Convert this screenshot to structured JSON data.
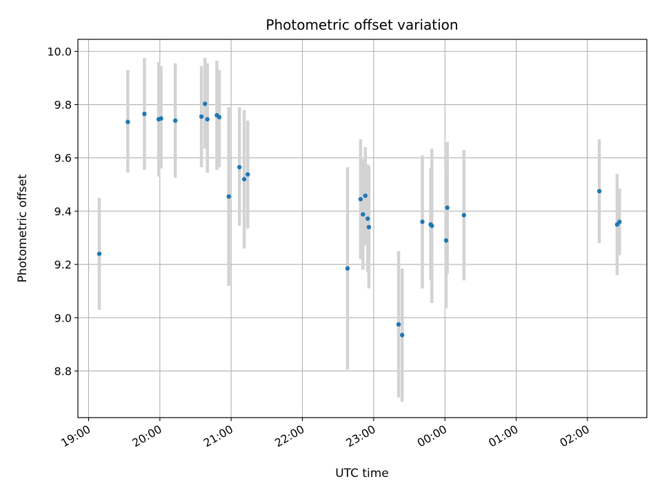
{
  "chart_data": {
    "type": "scatter",
    "title": "Photometric offset variation",
    "xlabel": "UTC time",
    "ylabel": "Photometric offset",
    "x_is_time": true,
    "xlim": [
      "18:51",
      "02:50"
    ],
    "ylim": [
      8.625,
      10.045
    ],
    "grid": true,
    "marker_color": "#1f77b4",
    "errorbar_color": "#d3d3d3",
    "x_ticks": [
      "19:00",
      "20:00",
      "21:00",
      "22:00",
      "23:00",
      "00:00",
      "01:00",
      "02:00"
    ],
    "y_ticks": [
      "8.8",
      "9.0",
      "9.2",
      "9.4",
      "9.6",
      "9.8",
      "10.0"
    ],
    "y_tick_values": [
      8.8,
      9.0,
      9.2,
      9.4,
      9.6,
      9.8,
      10.0
    ],
    "points": [
      {
        "t": "19:09",
        "y": 9.24,
        "ylow": 9.03,
        "yhigh": 9.45
      },
      {
        "t": "19:33",
        "y": 9.735,
        "ylow": 9.545,
        "yhigh": 9.93
      },
      {
        "t": "19:47",
        "y": 9.765,
        "ylow": 9.555,
        "yhigh": 9.975
      },
      {
        "t": "19:59",
        "y": 9.745,
        "ylow": 9.53,
        "yhigh": 9.96
      },
      {
        "t": "20:01",
        "y": 9.748,
        "ylow": 9.56,
        "yhigh": 9.945
      },
      {
        "t": "20:13",
        "y": 9.74,
        "ylow": 9.525,
        "yhigh": 9.955
      },
      {
        "t": "20:35",
        "y": 9.755,
        "ylow": 9.565,
        "yhigh": 9.945
      },
      {
        "t": "20:38",
        "y": 9.803,
        "ylow": 9.635,
        "yhigh": 9.975
      },
      {
        "t": "20:40",
        "y": 9.745,
        "ylow": 9.545,
        "yhigh": 9.955
      },
      {
        "t": "20:48",
        "y": 9.76,
        "ylow": 9.555,
        "yhigh": 9.965
      },
      {
        "t": "20:50",
        "y": 9.753,
        "ylow": 9.565,
        "yhigh": 9.93
      },
      {
        "t": "20:58",
        "y": 9.455,
        "ylow": 9.12,
        "yhigh": 9.79
      },
      {
        "t": "21:07",
        "y": 9.565,
        "ylow": 9.345,
        "yhigh": 9.79
      },
      {
        "t": "21:11",
        "y": 9.52,
        "ylow": 9.26,
        "yhigh": 9.78
      },
      {
        "t": "21:14",
        "y": 9.538,
        "ylow": 9.335,
        "yhigh": 9.74
      },
      {
        "t": "22:38",
        "y": 9.185,
        "ylow": 8.805,
        "yhigh": 9.565
      },
      {
        "t": "22:49",
        "y": 9.445,
        "ylow": 9.22,
        "yhigh": 9.67
      },
      {
        "t": "22:51",
        "y": 9.388,
        "ylow": 9.18,
        "yhigh": 9.595
      },
      {
        "t": "22:53",
        "y": 9.458,
        "ylow": 9.27,
        "yhigh": 9.64
      },
      {
        "t": "22:55",
        "y": 9.372,
        "ylow": 9.17,
        "yhigh": 9.575
      },
      {
        "t": "22:56",
        "y": 9.34,
        "ylow": 9.11,
        "yhigh": 9.57
      },
      {
        "t": "23:21",
        "y": 8.975,
        "ylow": 8.7,
        "yhigh": 9.25
      },
      {
        "t": "23:24",
        "y": 8.935,
        "ylow": 8.685,
        "yhigh": 9.185
      },
      {
        "t": "23:41",
        "y": 9.36,
        "ylow": 9.11,
        "yhigh": 9.61
      },
      {
        "t": "23:48",
        "y": 9.35,
        "ylow": 9.14,
        "yhigh": 9.56
      },
      {
        "t": "23:49",
        "y": 9.345,
        "ylow": 9.055,
        "yhigh": 9.635
      },
      {
        "t": "00:01",
        "y": 9.29,
        "ylow": 9.035,
        "yhigh": 9.545
      },
      {
        "t": "00:02",
        "y": 9.413,
        "ylow": 9.165,
        "yhigh": 9.66
      },
      {
        "t": "00:16",
        "y": 9.385,
        "ylow": 9.14,
        "yhigh": 9.63
      },
      {
        "t": "02:10",
        "y": 9.475,
        "ylow": 9.28,
        "yhigh": 9.67
      },
      {
        "t": "02:25",
        "y": 9.35,
        "ylow": 9.16,
        "yhigh": 9.54
      },
      {
        "t": "02:27",
        "y": 9.36,
        "ylow": 9.235,
        "yhigh": 9.485
      }
    ]
  }
}
